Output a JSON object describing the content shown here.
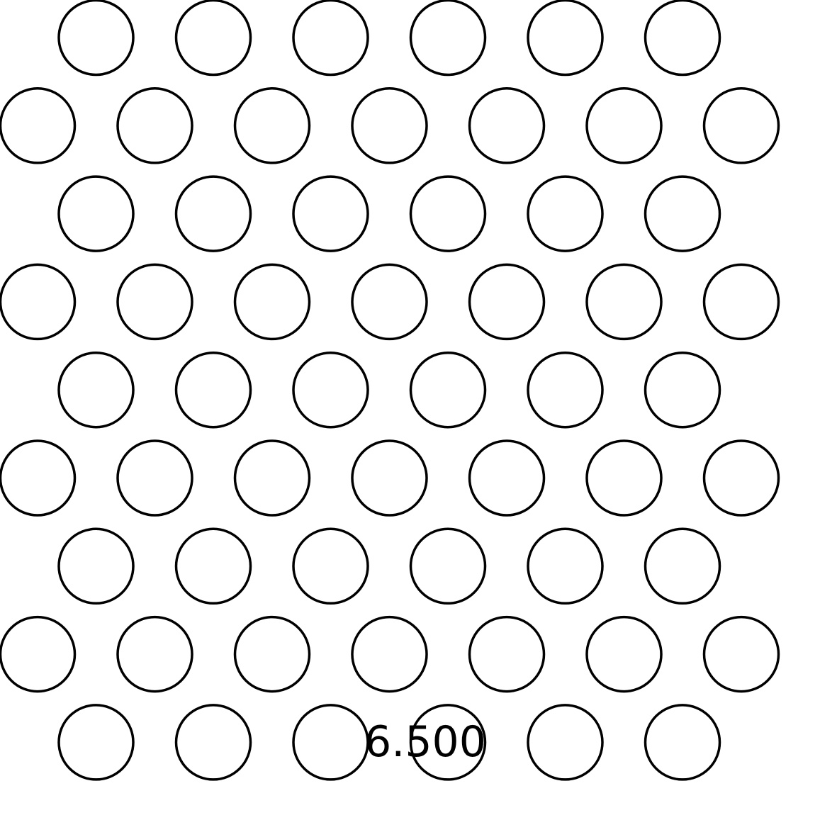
{
  "diagram": {
    "label": "6.500",
    "row_counts": [
      6,
      7,
      6,
      7,
      6,
      7,
      6,
      7,
      6
    ],
    "stroke_color": "#000000",
    "text_color": "#000000",
    "background_color": "#ffffff"
  }
}
